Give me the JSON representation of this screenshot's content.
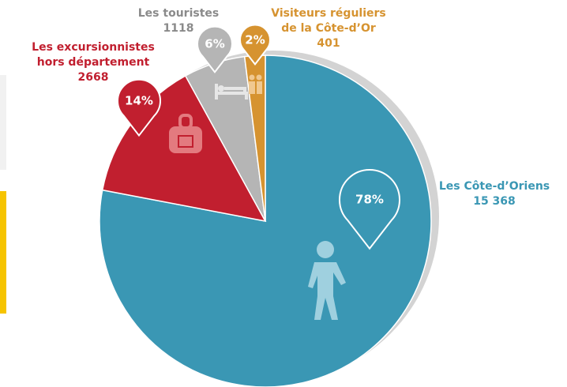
{
  "chart_data": {
    "type": "pie",
    "categories": [
      [
        "Les Côte-d’Oriens"
      ],
      [
        "Les excursionnistes",
        "hors département"
      ],
      [
        "Les touristes"
      ],
      [
        "Visiteurs réguliers",
        "de la Côte-d’Or"
      ]
    ],
    "values": [
      78,
      14,
      6,
      2
    ],
    "value_labels": [
      "78%",
      "14%",
      "6%",
      "2%"
    ],
    "counts": [
      15368,
      2668,
      1118,
      401
    ],
    "count_labels": [
      "15 368",
      "2668",
      "1118",
      "401"
    ],
    "colors": [
      "#3a97b4",
      "#c11f2f",
      "#b5b5b5",
      "#d69330"
    ]
  }
}
